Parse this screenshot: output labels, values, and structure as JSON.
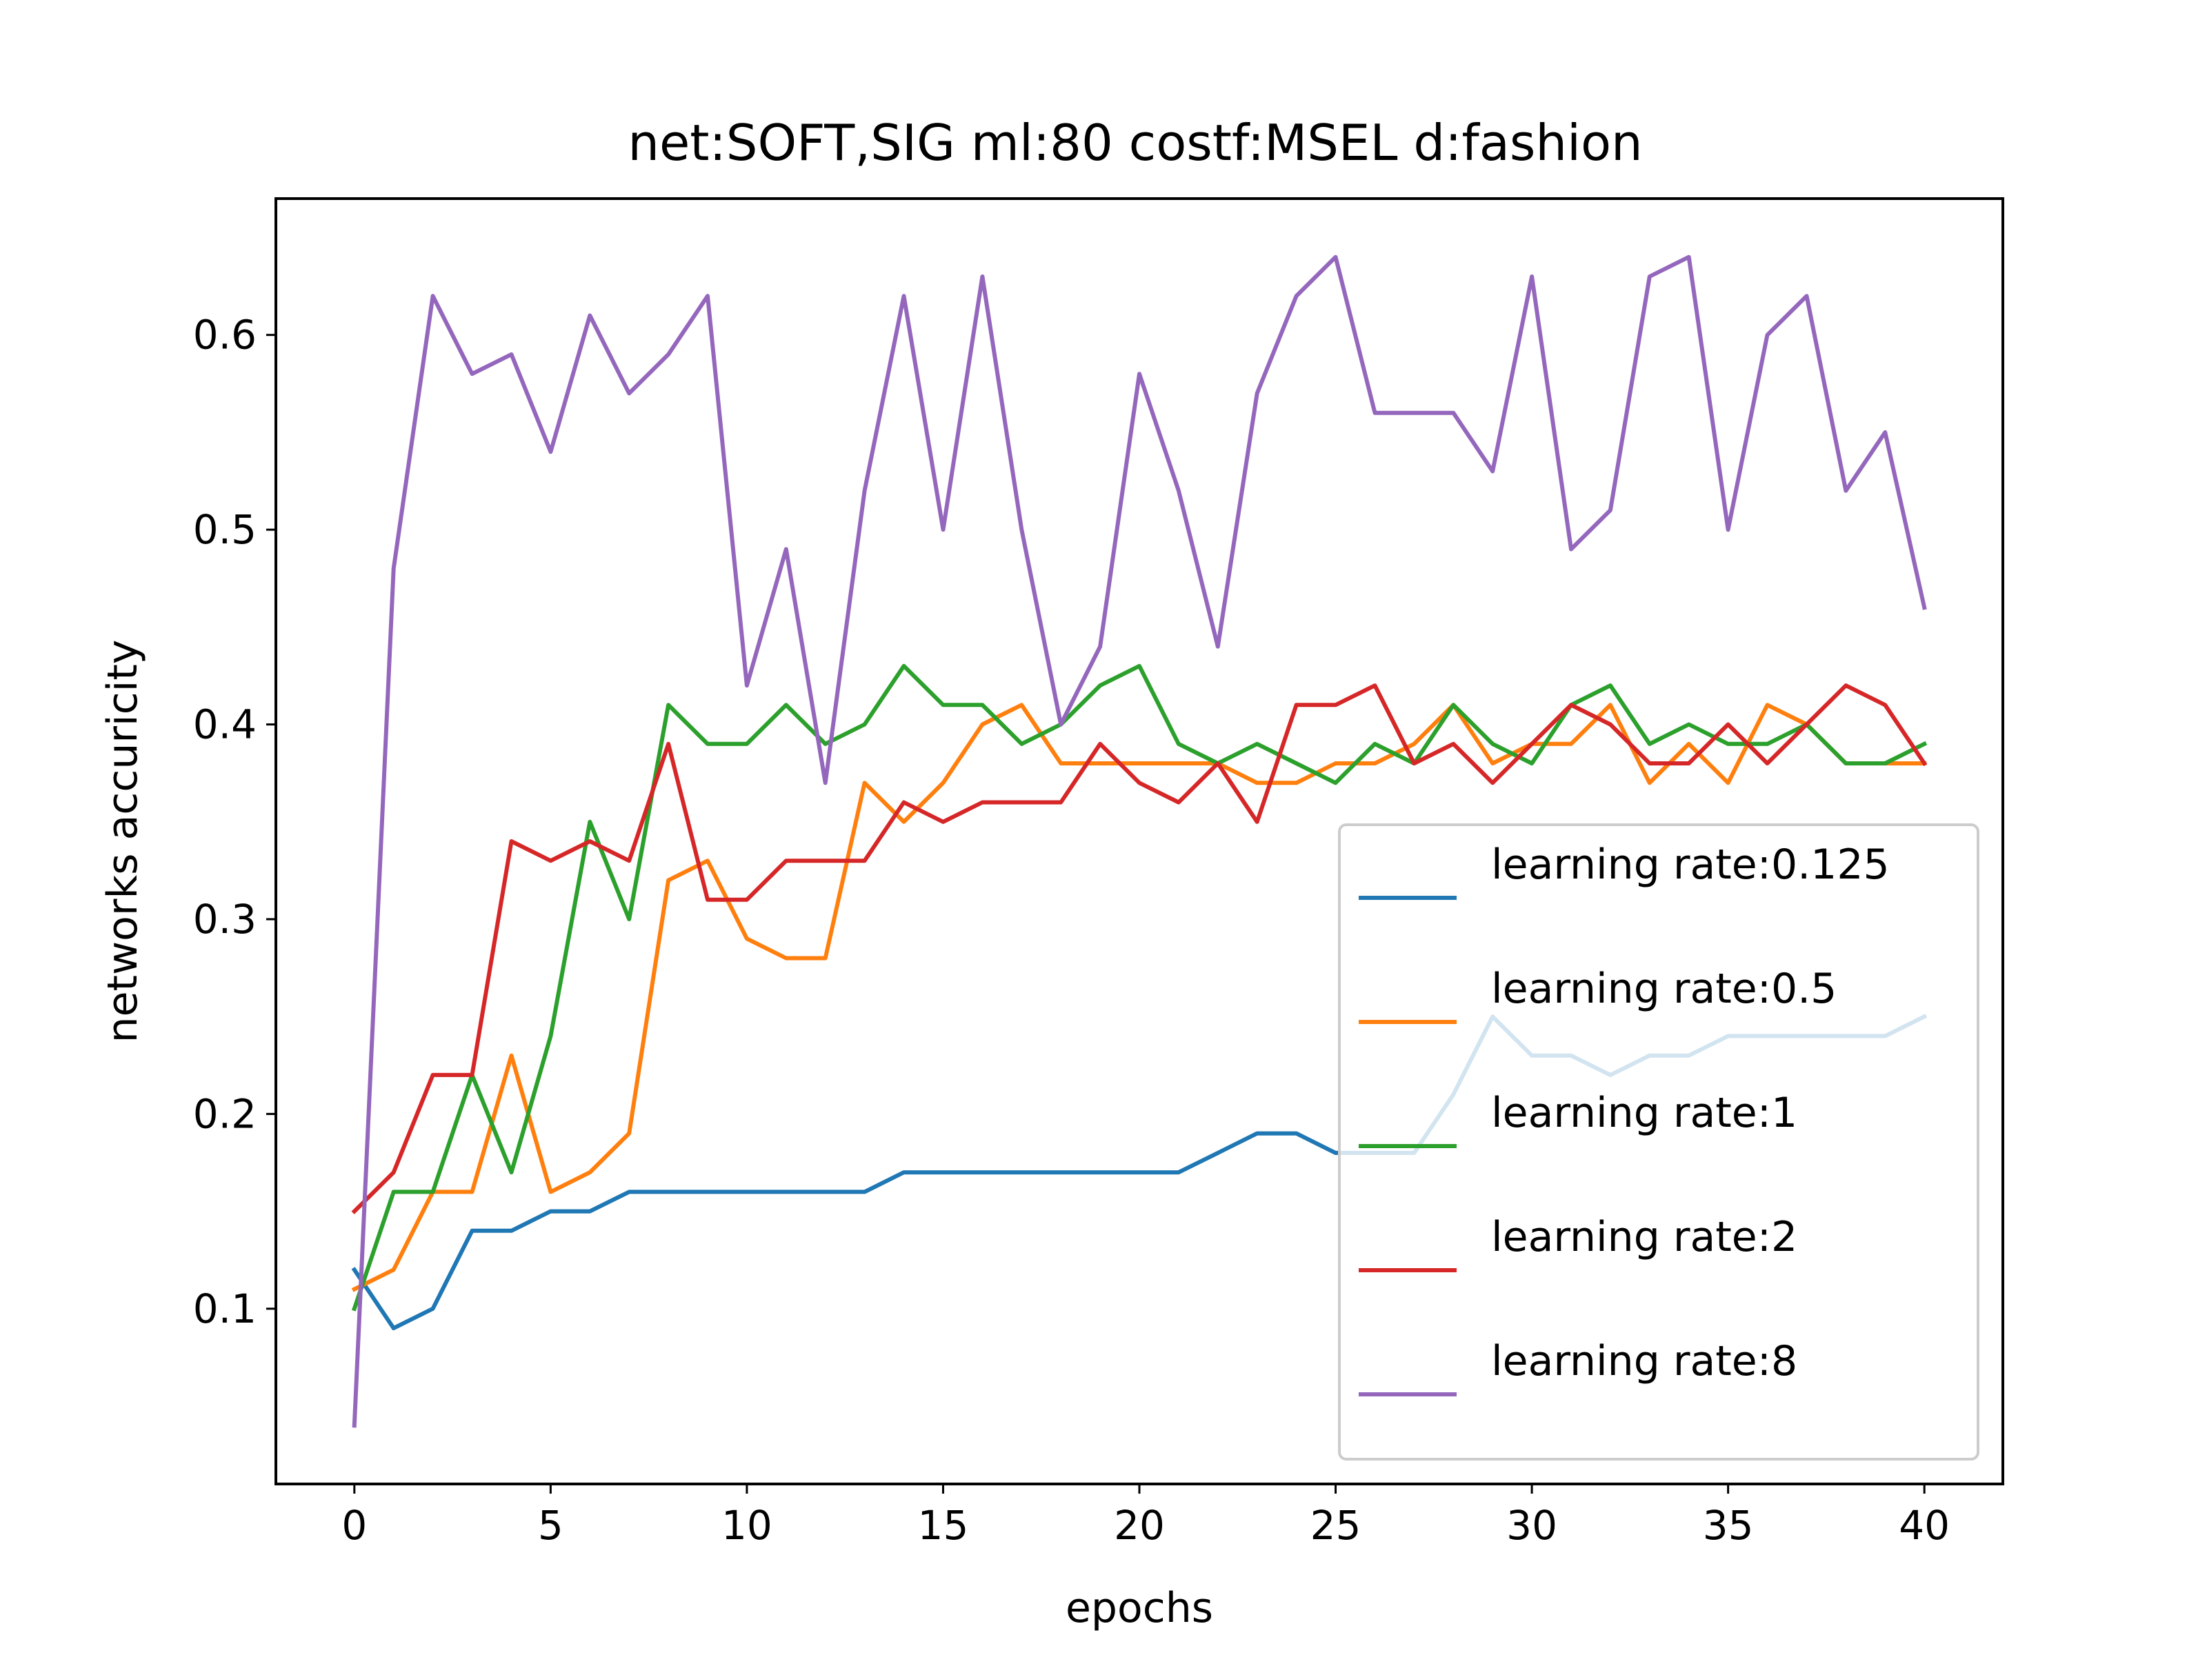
{
  "chart_data": {
    "type": "line",
    "title": "net:SOFT,SIG ml:80 costf:MSEL d:fashion",
    "xlabel": "epochs",
    "ylabel": "networks accuricity",
    "xlim": [
      -2,
      42
    ],
    "ylim": [
      0.01,
      0.67
    ],
    "xticks": [
      0,
      5,
      10,
      15,
      20,
      25,
      30,
      35,
      40
    ],
    "xtick_labels": [
      "0",
      "5",
      "10",
      "15",
      "20",
      "25",
      "30",
      "35",
      "40"
    ],
    "yticks": [
      0.1,
      0.2,
      0.3,
      0.4,
      0.5,
      0.6
    ],
    "ytick_labels": [
      "0.1",
      "0.2",
      "0.3",
      "0.4",
      "0.5",
      "0.6"
    ],
    "grid": false,
    "legend_position": "lower-right",
    "x": [
      0,
      1,
      2,
      3,
      4,
      5,
      6,
      7,
      8,
      9,
      10,
      11,
      12,
      13,
      14,
      15,
      16,
      17,
      18,
      19,
      20,
      21,
      22,
      23,
      24,
      25,
      26,
      27,
      28,
      29,
      30,
      31,
      32,
      33,
      34,
      35,
      36,
      37,
      38,
      39,
      40
    ],
    "series": [
      {
        "name": "learning rate:0.125",
        "color": "#1f77b4",
        "values": [
          0.12,
          0.09,
          0.1,
          0.14,
          0.14,
          0.15,
          0.15,
          0.16,
          0.16,
          0.16,
          0.16,
          0.16,
          0.16,
          0.16,
          0.17,
          0.17,
          0.17,
          0.17,
          0.17,
          0.17,
          0.17,
          0.17,
          0.18,
          0.19,
          0.19,
          0.18,
          0.18,
          0.18,
          0.21,
          0.25,
          0.23,
          0.23,
          0.22,
          0.23,
          0.23,
          0.24,
          0.24,
          0.24,
          0.24,
          0.24,
          0.25
        ]
      },
      {
        "name": "learning rate:0.5",
        "color": "#ff7f0e",
        "values": [
          0.11,
          0.12,
          0.16,
          0.16,
          0.23,
          0.16,
          0.17,
          0.19,
          0.32,
          0.33,
          0.29,
          0.28,
          0.28,
          0.37,
          0.35,
          0.37,
          0.4,
          0.41,
          0.38,
          0.38,
          0.38,
          0.38,
          0.38,
          0.37,
          0.37,
          0.38,
          0.38,
          0.39,
          0.41,
          0.38,
          0.39,
          0.39,
          0.41,
          0.37,
          0.39,
          0.37,
          0.41,
          0.4,
          0.38,
          0.38,
          0.38
        ]
      },
      {
        "name": "learning rate:1",
        "color": "#2ca02c",
        "values": [
          0.1,
          0.16,
          0.16,
          0.22,
          0.17,
          0.24,
          0.35,
          0.3,
          0.41,
          0.39,
          0.39,
          0.41,
          0.39,
          0.4,
          0.43,
          0.41,
          0.41,
          0.39,
          0.4,
          0.42,
          0.43,
          0.39,
          0.38,
          0.39,
          0.38,
          0.37,
          0.39,
          0.38,
          0.41,
          0.39,
          0.38,
          0.41,
          0.42,
          0.39,
          0.4,
          0.39,
          0.39,
          0.4,
          0.38,
          0.38,
          0.39
        ]
      },
      {
        "name": "learning rate:2",
        "color": "#d62728",
        "values": [
          0.15,
          0.17,
          0.22,
          0.22,
          0.34,
          0.33,
          0.34,
          0.33,
          0.39,
          0.31,
          0.31,
          0.33,
          0.33,
          0.33,
          0.36,
          0.35,
          0.36,
          0.36,
          0.36,
          0.39,
          0.37,
          0.36,
          0.38,
          0.35,
          0.41,
          0.41,
          0.42,
          0.38,
          0.39,
          0.37,
          0.39,
          0.41,
          0.4,
          0.38,
          0.38,
          0.4,
          0.38,
          0.4,
          0.42,
          0.41,
          0.38
        ]
      },
      {
        "name": "learning rate:8",
        "color": "#9467bd",
        "values": [
          0.04,
          0.48,
          0.62,
          0.58,
          0.59,
          0.54,
          0.61,
          0.57,
          0.59,
          0.62,
          0.42,
          0.49,
          0.37,
          0.52,
          0.62,
          0.5,
          0.63,
          0.5,
          0.4,
          0.44,
          0.58,
          0.52,
          0.44,
          0.57,
          0.62,
          0.64,
          0.56,
          0.56,
          0.56,
          0.53,
          0.63,
          0.49,
          0.51,
          0.63,
          0.64,
          0.5,
          0.6,
          0.62,
          0.52,
          0.55,
          0.46
        ]
      }
    ]
  }
}
